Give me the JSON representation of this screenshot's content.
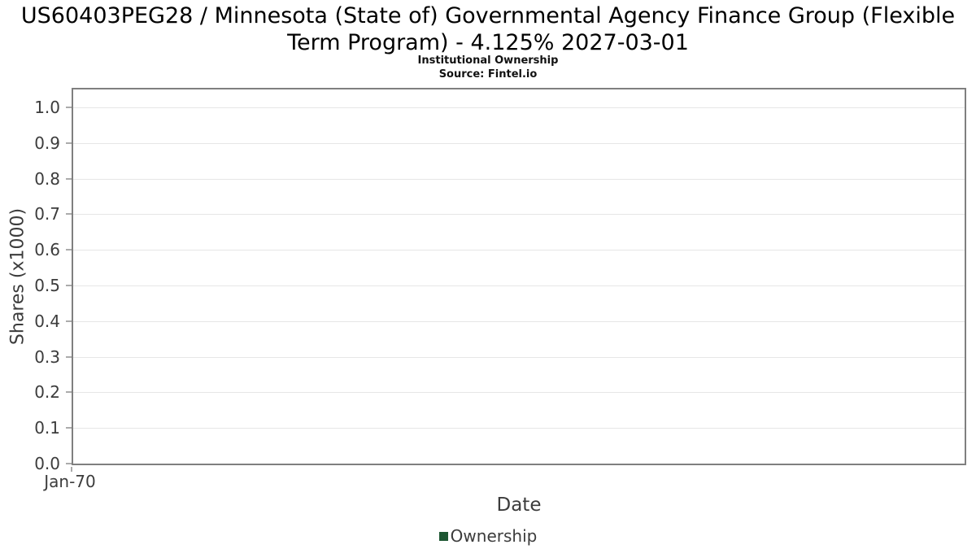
{
  "title": "US60403PEG28 / Minnesota (State of) Governmental Agency Finance Group (Flexible Term Program) - 4.125% 2027-03-01",
  "subtitle": "Institutional Ownership",
  "source": "Source: Fintel.io",
  "colors": {
    "ownership_series": "#1d5632",
    "gridline": "#e6e6e6",
    "plot_border": "#7f7f7f",
    "axis_text": "#3c3c3c"
  },
  "chart_data": {
    "type": "line",
    "title": "US60403PEG28 / Minnesota (State of) Governmental Agency Finance Group (Flexible Term Program) - 4.125% 2027-03-01",
    "subtitle": "Institutional Ownership",
    "source": "Source: Fintel.io",
    "xlabel": "Date",
    "ylabel": "Shares (x1000)",
    "x": [],
    "series": [
      {
        "name": "Ownership",
        "color": "#1d5632",
        "values": []
      }
    ],
    "ylim": [
      0,
      1.05
    ],
    "yticks": [
      0.0,
      0.1,
      0.2,
      0.3,
      0.4,
      0.5,
      0.6,
      0.7,
      0.8,
      0.9,
      1.0
    ],
    "ytick_labels": [
      "0.0",
      "0.1",
      "0.2",
      "0.3",
      "0.4",
      "0.5",
      "0.6",
      "0.7",
      "0.8",
      "0.9",
      "1.0"
    ],
    "xtick_labels": [
      "Jan-70"
    ],
    "grid": "horizontal",
    "legend_position": "bottom"
  }
}
